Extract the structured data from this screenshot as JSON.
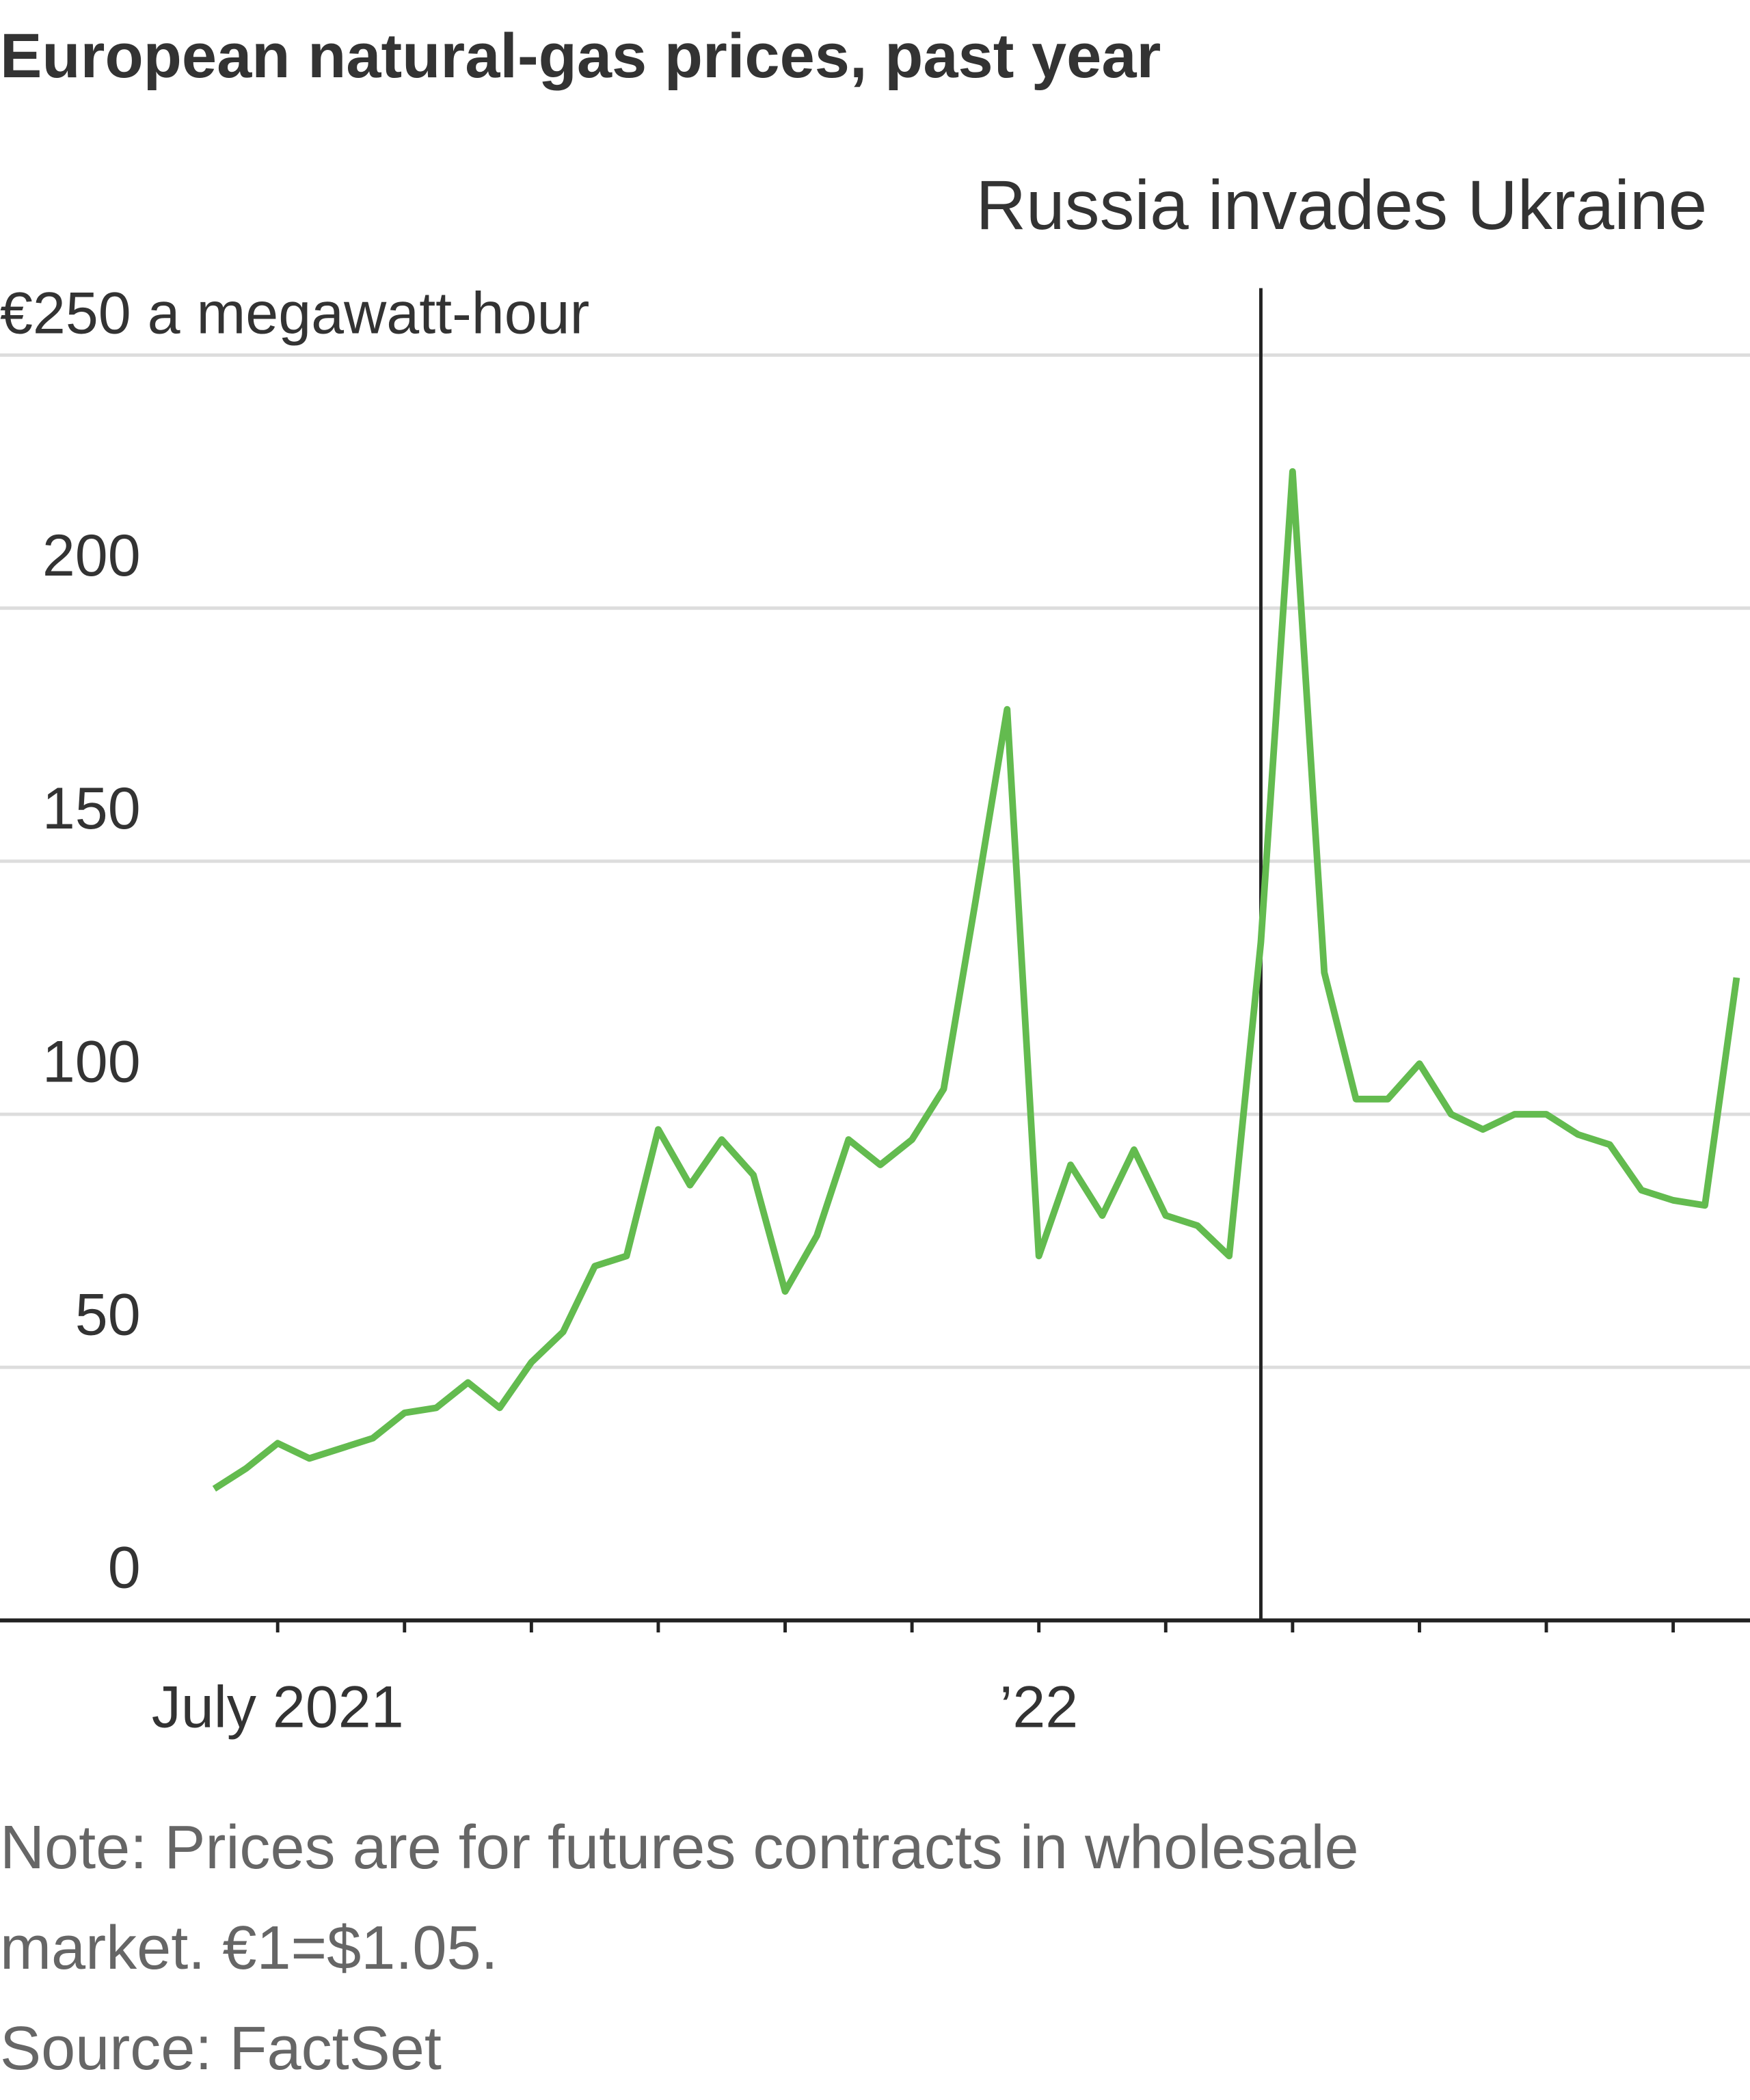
{
  "chart_data": {
    "type": "line",
    "title": "European natural-gas prices, past year",
    "annotation": "Russia invades Ukraine",
    "note": [
      "Note: Prices are for futures contracts in wholesale",
      "market. €1=$1.05."
    ],
    "source": "Source: FactSet",
    "categories": [
      null,
      null,
      "July 2021",
      null,
      null,
      null,
      null,
      null,
      null,
      null,
      null,
      null,
      null,
      null,
      null,
      null,
      null,
      null,
      null,
      null,
      null,
      null,
      null,
      null,
      null,
      null,
      "’22",
      null,
      null,
      null,
      null,
      null,
      null,
      null,
      null,
      null,
      null,
      null,
      null,
      null,
      null,
      null,
      null,
      null,
      null,
      null,
      null,
      null,
      null
    ],
    "series": [
      {
        "name": "Price",
        "color": "#63bb4f",
        "values": [
          26,
          30,
          35,
          32,
          34,
          36,
          41,
          42,
          47,
          42,
          51,
          57,
          70,
          72,
          97,
          86,
          95,
          88,
          65,
          76,
          95,
          90,
          95,
          105,
          142,
          180,
          72,
          90,
          80,
          93,
          80,
          78,
          72,
          134,
          227,
          128,
          103,
          103,
          110,
          100,
          97,
          100,
          100,
          96,
          94,
          85,
          83,
          82,
          127
        ]
      }
    ],
    "ylim": [
      0,
      250
    ],
    "yticks": [
      0,
      50,
      100,
      150,
      200,
      {
        "value": 250,
        "label": "€250 a megawatt-hour"
      }
    ],
    "grid": true
  }
}
